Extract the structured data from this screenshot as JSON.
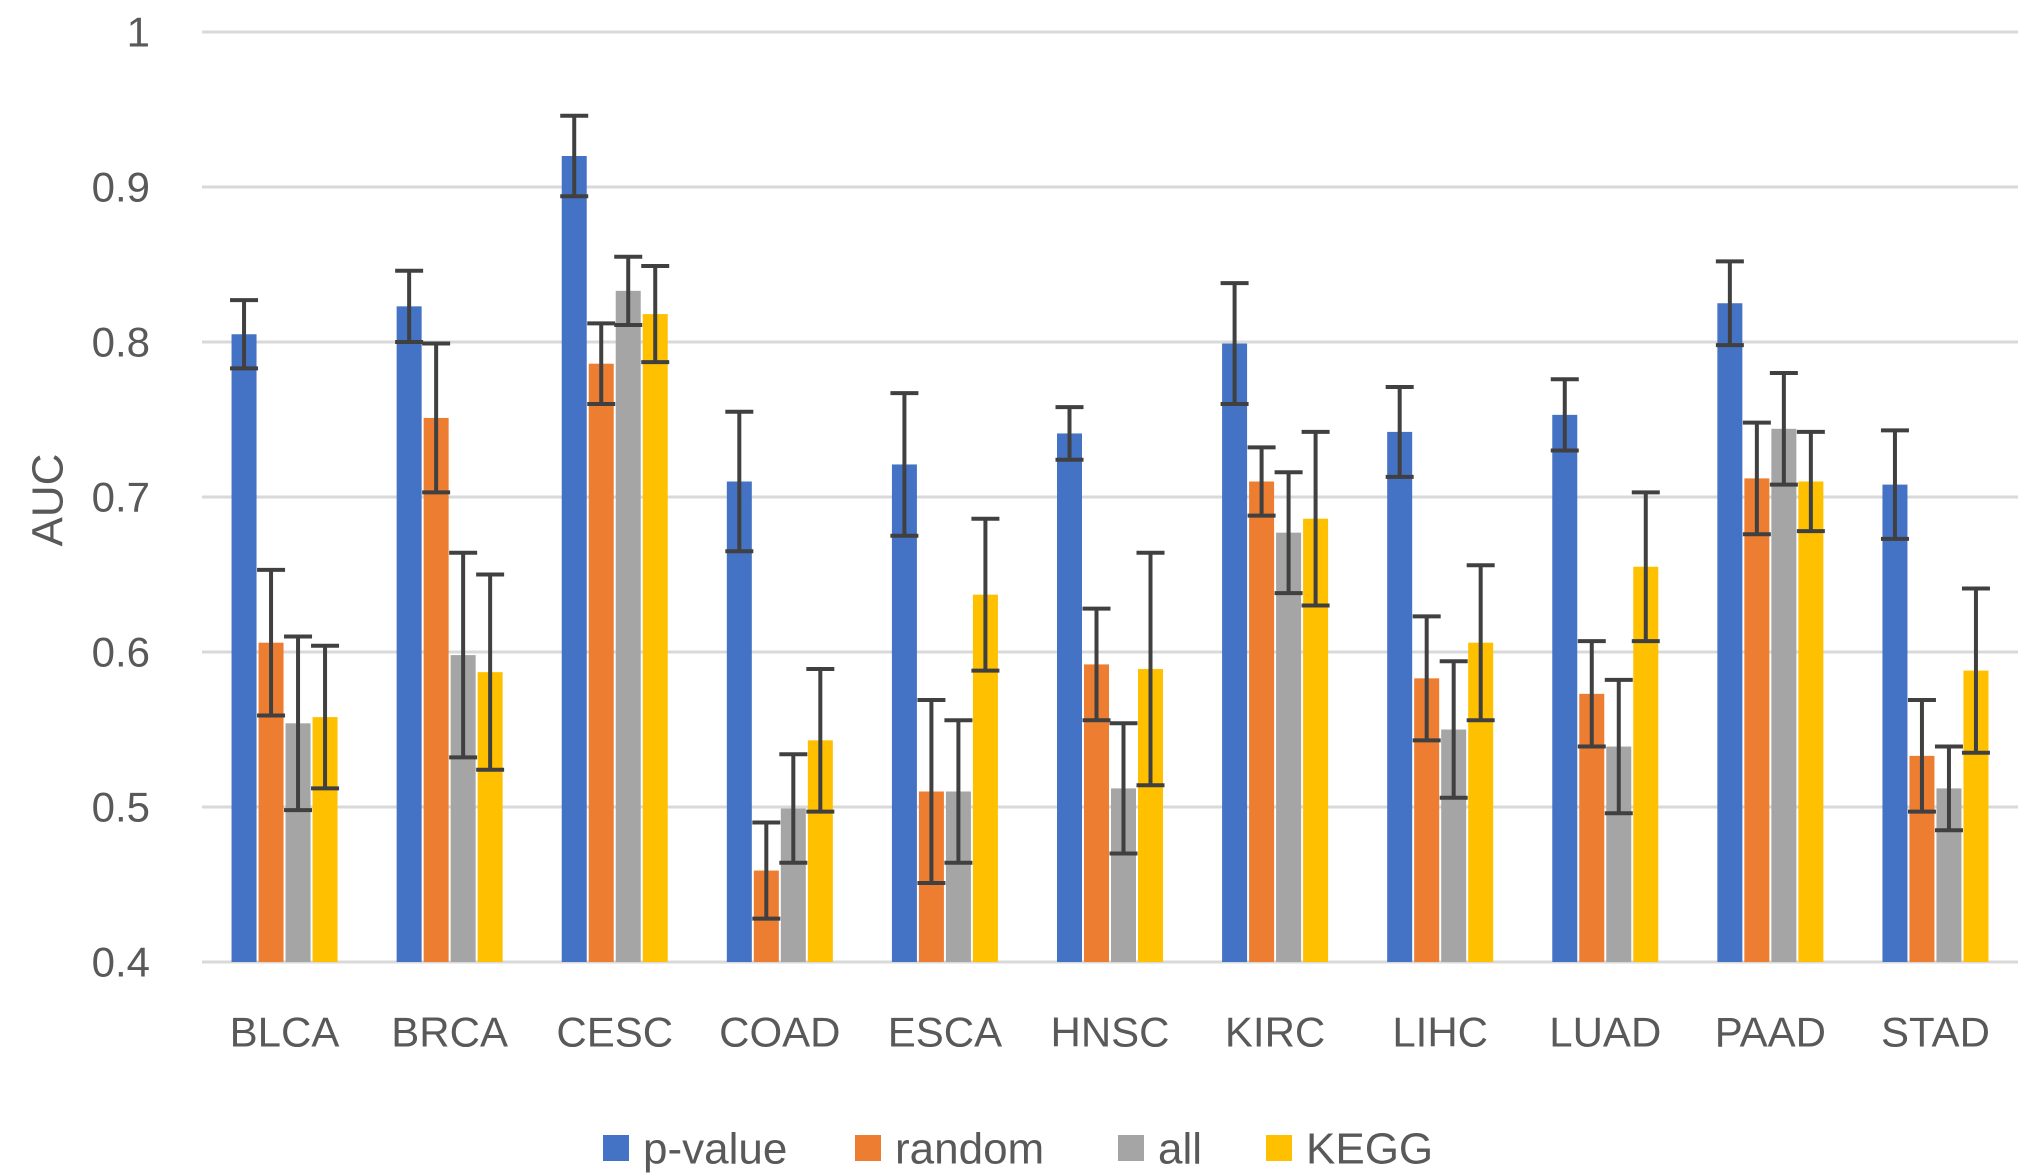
{
  "chart_data": {
    "type": "bar",
    "title": "",
    "xlabel": "",
    "ylabel": "AUC",
    "ylim": [
      0.4,
      1.0
    ],
    "yticks": [
      0.4,
      0.5,
      0.6,
      0.7,
      0.8,
      0.9,
      1.0
    ],
    "ytick_labels": [
      "0.4",
      "0.5",
      "0.6",
      "0.7",
      "0.8",
      "0.9",
      "1"
    ],
    "grid": true,
    "legend_position": "bottom",
    "categories": [
      "BLCA",
      "BRCA",
      "CESC",
      "COAD",
      "ESCA",
      "HNSC",
      "KIRC",
      "LIHC",
      "LUAD",
      "PAAD",
      "STAD"
    ],
    "series": [
      {
        "name": "p-value",
        "color": "#4472C4",
        "values": [
          0.805,
          0.823,
          0.92,
          0.71,
          0.721,
          0.741,
          0.799,
          0.742,
          0.753,
          0.825,
          0.708
        ],
        "errors": [
          0.022,
          0.023,
          0.026,
          0.045,
          0.046,
          0.017,
          0.039,
          0.029,
          0.023,
          0.027,
          0.035
        ]
      },
      {
        "name": "random",
        "color": "#ED7D31",
        "values": [
          0.606,
          0.751,
          0.786,
          0.459,
          0.51,
          0.592,
          0.71,
          0.583,
          0.573,
          0.712,
          0.533
        ],
        "errors": [
          0.047,
          0.048,
          0.026,
          0.031,
          0.059,
          0.036,
          0.022,
          0.04,
          0.034,
          0.036,
          0.036
        ]
      },
      {
        "name": "all",
        "color": "#A5A5A5",
        "values": [
          0.554,
          0.598,
          0.833,
          0.499,
          0.51,
          0.512,
          0.677,
          0.55,
          0.539,
          0.744,
          0.512
        ],
        "errors": [
          0.056,
          0.066,
          0.022,
          0.035,
          0.046,
          0.042,
          0.039,
          0.044,
          0.043,
          0.036,
          0.027
        ]
      },
      {
        "name": "KEGG",
        "color": "#FFC000",
        "values": [
          0.558,
          0.587,
          0.818,
          0.543,
          0.637,
          0.589,
          0.686,
          0.606,
          0.655,
          0.71,
          0.588
        ],
        "errors": [
          0.046,
          0.063,
          0.031,
          0.046,
          0.049,
          0.075,
          0.056,
          0.05,
          0.048,
          0.032,
          0.053
        ]
      }
    ]
  }
}
